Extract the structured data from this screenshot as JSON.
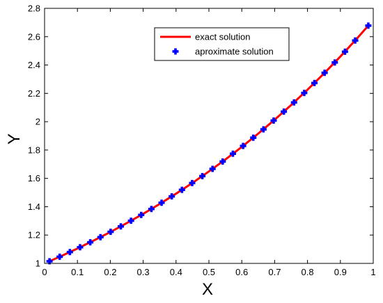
{
  "chart_data": {
    "type": "line",
    "title": "",
    "xlabel": "X",
    "ylabel": "Y",
    "xlim": [
      0,
      1
    ],
    "ylim": [
      1,
      2.8
    ],
    "x_ticks": [
      0,
      0.1,
      0.2,
      0.3,
      0.4,
      0.5,
      0.6,
      0.7,
      0.8,
      0.9,
      1
    ],
    "x_tick_labels": [
      "0",
      "0.1",
      "0.2",
      "0.3",
      "0.4",
      "0.5",
      "0.6",
      "0.7",
      "0.8",
      "0.9",
      "1"
    ],
    "y_ticks": [
      1,
      1.2,
      1.4,
      1.6,
      1.8,
      2,
      2.2,
      2.4,
      2.6,
      2.8
    ],
    "y_tick_labels": [
      "1",
      "1.2",
      "1.4",
      "1.6",
      "1.8",
      "2",
      "2.2",
      "2.4",
      "2.6",
      "2.8"
    ],
    "grid": false,
    "legend_position": "top-right",
    "series": [
      {
        "name": "exact solution",
        "style": "line",
        "color": "#ff0000",
        "x": [
          0.015,
          0.05,
          0.1,
          0.15,
          0.2,
          0.25,
          0.3,
          0.35,
          0.4,
          0.45,
          0.5,
          0.55,
          0.6,
          0.65,
          0.7,
          0.75,
          0.8,
          0.85,
          0.9,
          0.95,
          0.985
        ],
        "y": [
          1.015,
          1.051,
          1.105,
          1.162,
          1.221,
          1.284,
          1.35,
          1.419,
          1.492,
          1.568,
          1.649,
          1.733,
          1.822,
          1.916,
          2.014,
          2.117,
          2.226,
          2.34,
          2.46,
          2.586,
          2.678
        ]
      },
      {
        "name": "aproximate solution",
        "style": "markers",
        "color": "#0000ff",
        "marker": "plus-bold",
        "x": [
          0.015,
          0.046,
          0.077,
          0.108,
          0.139,
          0.17,
          0.201,
          0.232,
          0.263,
          0.294,
          0.325,
          0.356,
          0.387,
          0.418,
          0.449,
          0.48,
          0.511,
          0.542,
          0.573,
          0.604,
          0.635,
          0.666,
          0.697,
          0.728,
          0.759,
          0.79,
          0.821,
          0.852,
          0.883,
          0.914,
          0.945,
          0.985
        ],
        "y": [
          1.015,
          1.047,
          1.08,
          1.114,
          1.149,
          1.185,
          1.223,
          1.261,
          1.301,
          1.342,
          1.384,
          1.428,
          1.473,
          1.519,
          1.567,
          1.616,
          1.667,
          1.719,
          1.774,
          1.829,
          1.887,
          1.946,
          2.008,
          2.071,
          2.136,
          2.203,
          2.273,
          2.345,
          2.418,
          2.494,
          2.573,
          2.678
        ]
      }
    ]
  }
}
